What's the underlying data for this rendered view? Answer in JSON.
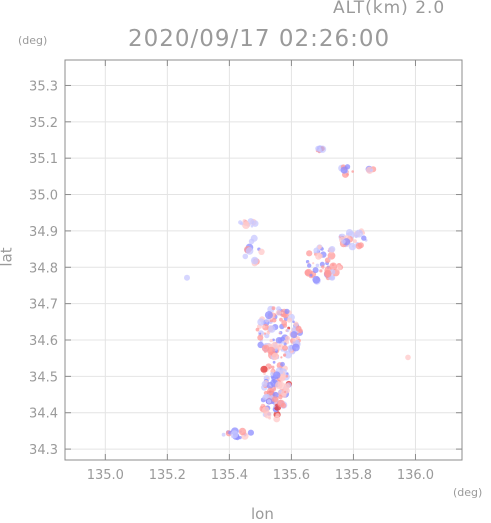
{
  "header": {
    "altitude_label": "ALT(km)  2.0",
    "datetime": "2020/09/17 02:26:00"
  },
  "axes": {
    "y_unit": "(deg)",
    "x_unit": "(deg)",
    "y_label": "lat",
    "x_label": "lon",
    "x_ticks": [
      "135.0",
      "135.2",
      "135.4",
      "135.6",
      "135.8",
      "136.0"
    ],
    "y_ticks": [
      "35.3",
      "35.2",
      "35.1",
      "35.0",
      "34.9",
      "34.8",
      "34.7",
      "34.6",
      "34.5",
      "34.4",
      "34.3"
    ],
    "x_range": [
      134.87,
      136.15
    ],
    "y_range": [
      34.27,
      35.37
    ]
  },
  "colors": {
    "frame": "#8c8c8c",
    "positive": "#ff9a9a",
    "negative": "#8c8cff",
    "strong_positive": "#e03030"
  },
  "map_data": {
    "type": "radar_field",
    "clusters": [
      {
        "lon": 135.56,
        "lat": 34.62,
        "rlon": 0.07,
        "rlat": 0.07,
        "n": 140
      },
      {
        "lon": 135.55,
        "lat": 34.49,
        "rlon": 0.045,
        "rlat": 0.06,
        "n": 80
      },
      {
        "lon": 135.54,
        "lat": 34.42,
        "rlon": 0.035,
        "rlat": 0.04,
        "n": 45
      },
      {
        "lon": 135.7,
        "lat": 34.81,
        "rlon": 0.06,
        "rlat": 0.05,
        "n": 55
      },
      {
        "lon": 135.8,
        "lat": 34.88,
        "rlon": 0.045,
        "rlat": 0.025,
        "n": 30
      },
      {
        "lon": 135.46,
        "lat": 34.92,
        "rlon": 0.03,
        "rlat": 0.01,
        "n": 12
      },
      {
        "lon": 135.48,
        "lat": 34.84,
        "rlon": 0.03,
        "rlat": 0.04,
        "n": 14
      },
      {
        "lon": 135.43,
        "lat": 34.34,
        "rlon": 0.05,
        "rlat": 0.01,
        "n": 18
      },
      {
        "lon": 135.69,
        "lat": 35.12,
        "rlon": 0.02,
        "rlat": 0.01,
        "n": 8
      },
      {
        "lon": 135.77,
        "lat": 35.07,
        "rlon": 0.03,
        "rlat": 0.02,
        "n": 10
      },
      {
        "lon": 135.86,
        "lat": 35.07,
        "rlon": 0.012,
        "rlat": 0.008,
        "n": 4
      },
      {
        "lon": 135.98,
        "lat": 34.55,
        "rlon": 0.005,
        "rlat": 0.005,
        "n": 1
      },
      {
        "lon": 135.26,
        "lat": 34.77,
        "rlon": 0.004,
        "rlat": 0.004,
        "n": 1
      }
    ]
  }
}
